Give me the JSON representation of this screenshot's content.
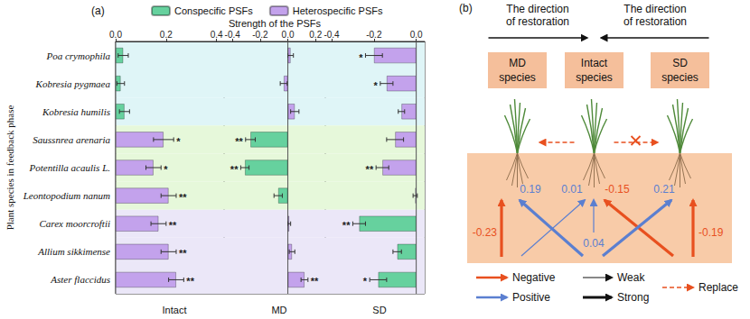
{
  "panel_label": "(a)",
  "xlabel": "Strength of the PSFs",
  "ylabel": "Plant species in feedback phase",
  "legend": "top",
  "chart_data": [
    {
      "type": "bar",
      "orientation": "horizontal",
      "title": "Intact",
      "categories": [
        "Poa crymophila",
        "Kobresia pygmaea",
        "Kobresia humilis",
        "Saussnrea arenaria",
        "Potentilla acaulis L.",
        "Leontopodium nanum",
        "Carex moorcroftii",
        "Allium sikkimense",
        "Aster flaccidus"
      ],
      "xlim": [
        0,
        0.43
      ],
      "xticks": [
        {
          "value": 0,
          "label": "0.0"
        },
        0.2,
        0.4
      ],
      "series": [
        {
          "name": "Conspecific PSFs",
          "color": "#66d19e",
          "values": [
            0.03,
            0.02,
            0.035,
            null,
            null,
            null,
            null,
            null,
            null
          ],
          "errors": [
            0.02,
            0.015,
            0.02,
            null,
            null,
            null,
            null,
            null,
            null
          ],
          "significance": [
            null,
            null,
            null,
            null,
            null,
            null,
            null,
            null,
            null
          ]
        },
        {
          "name": "Heterospecific PSFs",
          "color": "#c3a2ec",
          "values": [
            null,
            null,
            null,
            0.19,
            0.15,
            0.21,
            0.17,
            0.21,
            0.24
          ],
          "errors": [
            null,
            null,
            null,
            0.04,
            0.03,
            0.03,
            0.03,
            0.03,
            0.03
          ],
          "significance": [
            null,
            null,
            null,
            "*",
            "*",
            "**",
            "**",
            "**",
            "**"
          ]
        }
      ]
    },
    {
      "type": "bar",
      "orientation": "horizontal",
      "title": "MD",
      "tick_labels": "x",
      "categories": [
        "Poa crymophila",
        "Kobresia pygmaea",
        "Kobresia humilis",
        "Saussnrea arenaria",
        "Potentilla acaulis L.",
        "Leontopodium nanum",
        "Carex moorcroftii",
        "Allium sikkimense",
        "Aster flaccidus"
      ],
      "xlim": [
        -0.46,
        0.27
      ],
      "xticks": [
        -0.4,
        -0.2,
        {
          "value": 0,
          "label": "0.0"
        },
        0.2
      ],
      "series": [
        {
          "name": "Conspecific PSFs",
          "color": "#66d19e",
          "values": [
            null,
            null,
            null,
            -0.27,
            -0.31,
            -0.07,
            null,
            null,
            null
          ],
          "errors": [
            null,
            null,
            null,
            0.035,
            0.03,
            0.03,
            null,
            null,
            null
          ],
          "significance": [
            null,
            null,
            null,
            "**",
            "**",
            null,
            null,
            null,
            null
          ]
        },
        {
          "name": "Heterospecific PSFs",
          "color": "#c3a2ec",
          "values": [
            0.02,
            -0.03,
            0.05,
            null,
            null,
            null,
            0.01,
            0.03,
            0.12
          ],
          "errors": [
            0.02,
            0.025,
            0.03,
            null,
            null,
            null,
            0.01,
            0.02,
            0.025
          ],
          "significance": [
            null,
            null,
            null,
            null,
            null,
            null,
            null,
            null,
            "**"
          ]
        }
      ]
    },
    {
      "type": "bar",
      "orientation": "horizontal",
      "title": "SD",
      "tick_labels": "x",
      "categories": [
        "Poa crymophila",
        "Kobresia pygmaea",
        "Kobresia humilis",
        "Saussnrea arenaria",
        "Potentilla acaulis L.",
        "Leontopodium nanum",
        "Carex moorcroftii",
        "Allium sikkimense",
        "Aster flaccidus"
      ],
      "xlim": [
        -0.43,
        0.04
      ],
      "xticks": [
        -0.4,
        -0.2,
        {
          "value": 0,
          "label": "0.0"
        }
      ],
      "series": [
        {
          "name": "Conspecific PSFs",
          "color": "#66d19e",
          "values": [
            null,
            null,
            null,
            null,
            null,
            null,
            -0.27,
            -0.09,
            -0.18
          ],
          "errors": [
            null,
            null,
            null,
            null,
            null,
            null,
            0.03,
            0.02,
            0.04
          ],
          "significance": [
            null,
            null,
            null,
            null,
            null,
            null,
            "**",
            null,
            "*"
          ]
        },
        {
          "name": "Heterospecific PSFs",
          "color": "#c3a2ec",
          "values": [
            -0.2,
            -0.14,
            -0.07,
            -0.1,
            -0.16,
            -0.005,
            null,
            null,
            null
          ],
          "errors": [
            0.04,
            0.03,
            0.015,
            0.04,
            0.03,
            0.01,
            null,
            null,
            null
          ],
          "significance": [
            "*",
            "*",
            null,
            null,
            "**",
            null,
            null,
            null,
            null
          ]
        }
      ]
    }
  ],
  "diagram": {
    "panel_label": "(b)",
    "directions": [
      {
        "lines": [
          "The direction",
          "of restoration"
        ],
        "from": "MD",
        "to": "Intact"
      },
      {
        "lines": [
          "The direction",
          "of restoration"
        ],
        "from": "SD",
        "to": "Intact"
      }
    ],
    "boxes": [
      {
        "id": "MD",
        "lines": [
          "MD",
          "species"
        ]
      },
      {
        "id": "Intact",
        "lines": [
          "Intact",
          "species"
        ]
      },
      {
        "id": "SD",
        "lines": [
          "SD",
          "species"
        ]
      }
    ],
    "replacements": [
      {
        "from": "Intact",
        "to": "MD",
        "blocked": false
      },
      {
        "from": "Intact",
        "to": "SD",
        "blocked": true
      }
    ],
    "feedbacks": [
      {
        "plant": "MD",
        "soil": "MD",
        "value": -0.23,
        "strength": "strong"
      },
      {
        "plant": "MD",
        "soil": "Intact",
        "value": 0.19,
        "strength": "strong"
      },
      {
        "plant": "Intact",
        "soil": "MD",
        "value": 0.01,
        "strength": "weak"
      },
      {
        "plant": "Intact",
        "soil": "Intact",
        "value": 0.04,
        "strength": "weak"
      },
      {
        "plant": "Intact",
        "soil": "SD",
        "value": -0.15,
        "strength": "strong"
      },
      {
        "plant": "SD",
        "soil": "Intact",
        "value": 0.21,
        "strength": "strong"
      },
      {
        "plant": "SD",
        "soil": "SD",
        "value": -0.19,
        "strength": "strong"
      }
    ],
    "legend": {
      "negative": {
        "label": "Negative",
        "color": "#e8501f"
      },
      "positive": {
        "label": "Positive",
        "color": "#5b7fd0"
      },
      "weak": {
        "label": "Weak"
      },
      "strong": {
        "label": "Strong"
      },
      "replace": {
        "label": "Replace",
        "color": "#e8501f"
      }
    }
  }
}
